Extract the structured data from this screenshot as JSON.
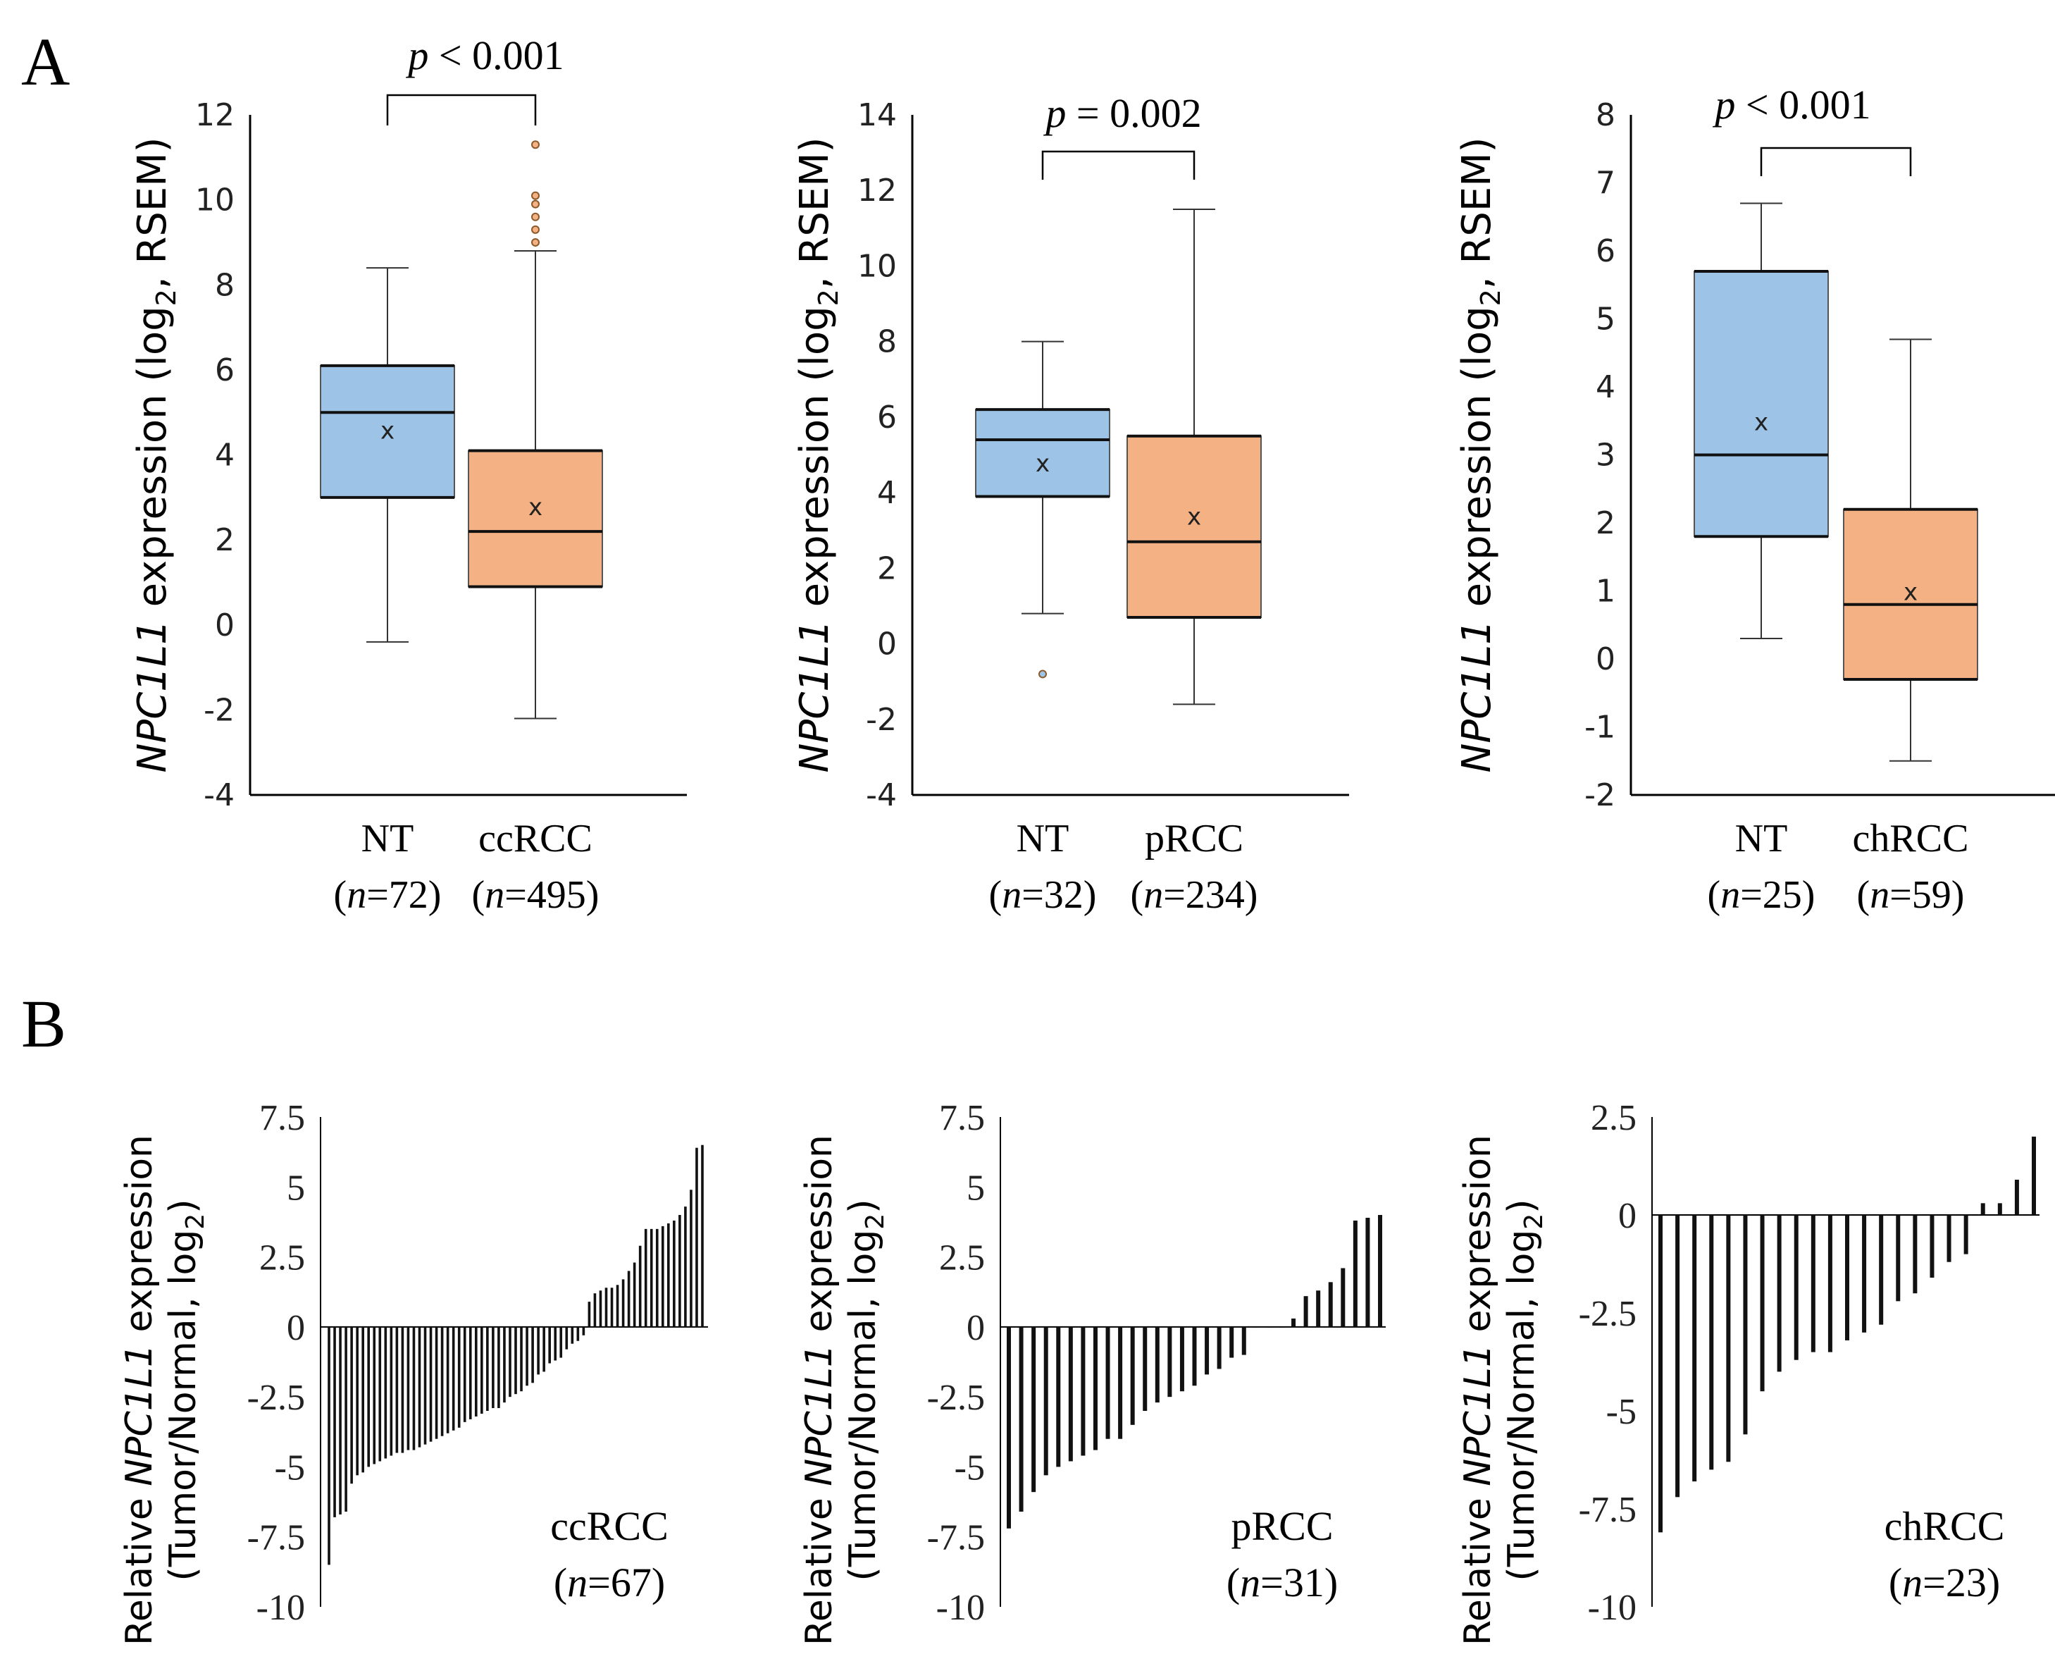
{
  "panel_labels": {
    "a": "A",
    "b": "B"
  },
  "chart_data": [
    {
      "panel": "A",
      "type": "box",
      "pvalue_prefix": "p",
      "pvalue_rest": " < 0.001",
      "ylabel_gene": "NPC1L1",
      "ylabel_rest": " expression (log",
      "ylabel_sub": "2",
      "ylabel_tail": ",  RSEM)",
      "ylim": [
        -4,
        12
      ],
      "yticks": [
        "-4",
        "-2",
        "0",
        "2",
        "4",
        "6",
        "8",
        "10",
        "12"
      ],
      "ytick_values": [
        -4,
        -2,
        0,
        2,
        4,
        6,
        8,
        10,
        12
      ],
      "groups": [
        {
          "name": "NT",
          "n_prefix": "(",
          "n_var": "n",
          "n_rest": "=72)",
          "color": "#9dc3e6",
          "whisker_low": -0.4,
          "q1": 3.0,
          "median": 5.0,
          "q3": 6.1,
          "whisker_high": 8.4,
          "mean": 4.6,
          "outliers": []
        },
        {
          "name": "ccRCC",
          "n_prefix": "(",
          "n_var": "n",
          "n_rest": "=495)",
          "color": "#f4b183",
          "whisker_low": -2.2,
          "q1": 0.9,
          "median": 2.2,
          "q3": 4.1,
          "whisker_high": 8.8,
          "mean": 2.8,
          "outliers": [
            9.0,
            9.3,
            9.6,
            9.9,
            10.1,
            11.3
          ]
        }
      ]
    },
    {
      "panel": "A",
      "type": "box",
      "pvalue_prefix": "p",
      "pvalue_rest": " = 0.002",
      "ylabel_gene": "NPC1L1",
      "ylabel_rest": " expression (log",
      "ylabel_sub": "2",
      "ylabel_tail": ",  RSEM)",
      "ylim": [
        -4,
        14
      ],
      "yticks": [
        "-4",
        "-2",
        "0",
        "2",
        "4",
        "6",
        "8",
        "10",
        "12",
        "14"
      ],
      "ytick_values": [
        -4,
        -2,
        0,
        2,
        4,
        6,
        8,
        10,
        12,
        14
      ],
      "groups": [
        {
          "name": "NT",
          "n_prefix": "(",
          "n_var": "n",
          "n_rest": "=32)",
          "color": "#9dc3e6",
          "whisker_low": 0.8,
          "q1": 3.9,
          "median": 5.4,
          "q3": 6.2,
          "whisker_high": 8.0,
          "mean": 4.8,
          "outliers": [
            -0.8
          ]
        },
        {
          "name": "pRCC",
          "n_prefix": "(",
          "n_var": "n",
          "n_rest": "=234)",
          "color": "#f4b183",
          "whisker_low": -1.6,
          "q1": 0.7,
          "median": 2.7,
          "q3": 5.5,
          "whisker_high": 11.5,
          "mean": 3.4,
          "outliers": []
        }
      ]
    },
    {
      "panel": "A",
      "type": "box",
      "pvalue_prefix": "p",
      "pvalue_rest": " < 0.001",
      "ylabel_gene": "NPC1L1",
      "ylabel_rest": " expression (log",
      "ylabel_sub": "2",
      "ylabel_tail": ",  RSEM)",
      "ylim": [
        -2,
        8
      ],
      "yticks": [
        "-2",
        "-1",
        "0",
        "1",
        "2",
        "3",
        "4",
        "5",
        "6",
        "7",
        "8"
      ],
      "ytick_values": [
        -2,
        -1,
        0,
        1,
        2,
        3,
        4,
        5,
        6,
        7,
        8
      ],
      "groups": [
        {
          "name": "NT",
          "n_prefix": "(",
          "n_var": "n",
          "n_rest": "=25)",
          "color": "#9dc3e6",
          "whisker_low": 0.3,
          "q1": 1.8,
          "median": 3.0,
          "q3": 5.7,
          "whisker_high": 6.7,
          "mean": 3.5,
          "outliers": []
        },
        {
          "name": "chRCC",
          "n_prefix": "(",
          "n_var": "n",
          "n_rest": "=59)",
          "color": "#f4b183",
          "whisker_low": -1.5,
          "q1": -0.3,
          "median": 0.8,
          "q3": 2.2,
          "whisker_high": 4.7,
          "mean": 1.0,
          "outliers": []
        }
      ]
    },
    {
      "panel": "B",
      "type": "bar",
      "ylabel_line1_pre": "Relative ",
      "ylabel_gene": "NPC1L1",
      "ylabel_line1_post": " expression",
      "ylabel_line2": "(Tumor/Normal, log",
      "ylabel_line2_sub": "2",
      "ylabel_line2_tail": ")",
      "label": "ccRCC",
      "n_prefix": "(",
      "n_var": "n",
      "n_rest": "=67)",
      "ylim": [
        -10,
        7.5
      ],
      "yticks": [
        "-10",
        "-7.5",
        "-5",
        "-2.5",
        "0",
        "2.5",
        "5",
        "7.5"
      ],
      "ytick_values": [
        -10,
        -7.5,
        -5,
        -2.5,
        0,
        2.5,
        5,
        7.5
      ],
      "values": [
        -8.5,
        -6.8,
        -6.7,
        -6.6,
        -5.6,
        -5.3,
        -5.2,
        -5.0,
        -4.9,
        -4.8,
        -4.7,
        -4.6,
        -4.5,
        -4.5,
        -4.4,
        -4.4,
        -4.3,
        -4.2,
        -4.1,
        -4.0,
        -3.9,
        -3.8,
        -3.7,
        -3.6,
        -3.4,
        -3.3,
        -3.2,
        -3.1,
        -3.0,
        -2.9,
        -2.9,
        -2.7,
        -2.5,
        -2.4,
        -2.3,
        -2.1,
        -2.0,
        -1.7,
        -1.6,
        -1.3,
        -1.2,
        -1.1,
        -0.8,
        -0.6,
        -0.5,
        -0.3,
        0.9,
        1.2,
        1.3,
        1.4,
        1.4,
        1.5,
        1.7,
        2.0,
        2.3,
        2.9,
        3.5,
        3.5,
        3.5,
        3.6,
        3.7,
        3.8,
        4.0,
        4.3,
        4.9,
        6.4,
        6.5
      ]
    },
    {
      "panel": "B",
      "type": "bar",
      "ylabel_line1_pre": "Relative ",
      "ylabel_gene": "NPC1L1",
      "ylabel_line1_post": " expression",
      "ylabel_line2": "(Tumor/Normal, log",
      "ylabel_line2_sub": "2",
      "ylabel_line2_tail": ")",
      "label": "pRCC",
      "n_prefix": "(",
      "n_var": "n",
      "n_rest": "=31)",
      "ylim": [
        -10,
        7.5
      ],
      "yticks": [
        "-10",
        "-7.5",
        "-5",
        "-2.5",
        "0",
        "2.5",
        "5",
        "7.5"
      ],
      "ytick_values": [
        -10,
        -7.5,
        -5,
        -2.5,
        0,
        2.5,
        5,
        7.5
      ],
      "values": [
        -7.2,
        -6.6,
        -5.9,
        -5.3,
        -5.0,
        -4.8,
        -4.6,
        -4.4,
        -4.0,
        -4.0,
        -3.5,
        -3.0,
        -2.7,
        -2.5,
        -2.3,
        -2.1,
        -1.7,
        -1.5,
        -1.1,
        -1.0,
        0.0,
        0.0,
        0.0,
        0.3,
        1.1,
        1.3,
        1.6,
        2.1,
        3.8,
        3.9,
        4.0
      ]
    },
    {
      "panel": "B",
      "type": "bar",
      "ylabel_line1_pre": "Relative ",
      "ylabel_gene": "NPC1L1",
      "ylabel_line1_post": " expression",
      "ylabel_line2": "(Tumor/Normal, log",
      "ylabel_line2_sub": "2",
      "ylabel_line2_tail": ")",
      "label": "chRCC",
      "n_prefix": "(",
      "n_var": "n",
      "n_rest": "=23)",
      "ylim": [
        -10,
        2.5
      ],
      "yticks": [
        "-10",
        "-7.5",
        "-5",
        "-2.5",
        "0",
        "2.5"
      ],
      "ytick_values": [
        -10,
        -7.5,
        -5,
        -2.5,
        0,
        2.5
      ],
      "values": [
        -8.1,
        -7.2,
        -6.8,
        -6.5,
        -6.3,
        -5.6,
        -4.5,
        -4.0,
        -3.7,
        -3.5,
        -3.5,
        -3.2,
        -3.0,
        -2.8,
        -2.2,
        -2.0,
        -1.6,
        -1.2,
        -1.0,
        0.3,
        0.3,
        0.9,
        2.0
      ]
    }
  ]
}
